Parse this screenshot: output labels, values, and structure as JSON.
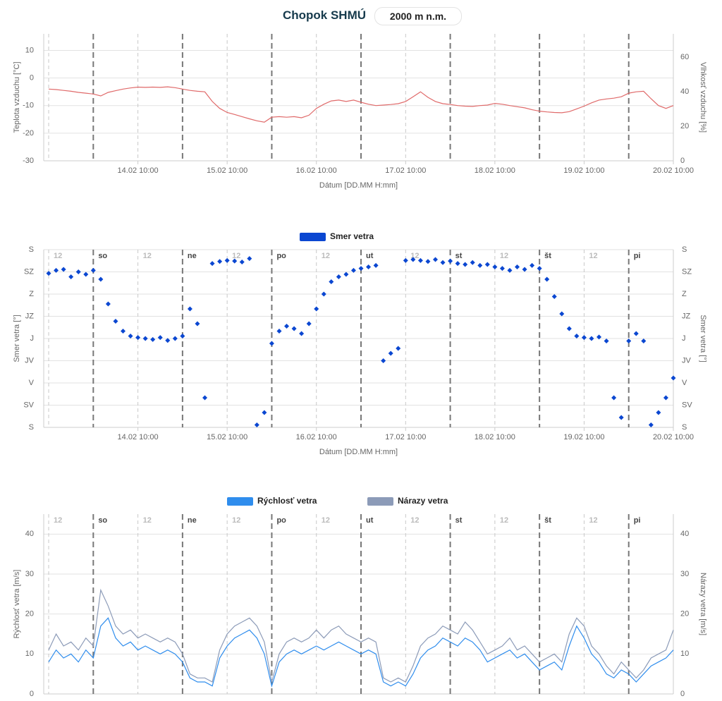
{
  "header": {
    "title": "Chopok SHMÚ",
    "elevation": "2000 m n.m."
  },
  "chart_data": [
    {
      "type": "line",
      "y_label": "Teplota vzduchu [°C]",
      "y2_label": "Vlhkosť vzduchu [%]",
      "x_label": "Dátum [DD.MM H:mm]",
      "xlim": [
        "13.02 08:40",
        "20.02 10:00"
      ],
      "xticks": [
        "14.02 10:00",
        "15.02 10:00",
        "16.02 10:00",
        "17.02 10:00",
        "18.02 10:00",
        "19.02 10:00",
        "20.02 10:00"
      ],
      "ylim": [
        -30,
        16
      ],
      "yticks": [
        -30,
        -20,
        -10,
        0,
        10
      ],
      "y2lim": [
        0,
        73.5
      ],
      "y2ticks": [
        0,
        20,
        40,
        60
      ],
      "grid": true,
      "day_lines": [
        "13.02 22:00",
        "14.02 22:00",
        "15.02 22:00",
        "16.02 22:00",
        "17.02 22:00",
        "18.02 22:00",
        "19.02 22:00"
      ],
      "noon_lines": [
        "13.02 10:00",
        "14.02 10:00",
        "15.02 10:00",
        "16.02 10:00",
        "17.02 10:00",
        "18.02 10:00",
        "19.02 10:00"
      ],
      "x": [
        "13.02 10:00",
        "13.02 12:00",
        "13.02 14:00",
        "13.02 16:00",
        "13.02 18:00",
        "13.02 20:00",
        "13.02 22:00",
        "14.02 00:00",
        "14.02 02:00",
        "14.02 04:00",
        "14.02 06:00",
        "14.02 08:00",
        "14.02 10:00",
        "14.02 12:00",
        "14.02 14:00",
        "14.02 16:00",
        "14.02 18:00",
        "14.02 20:00",
        "14.02 22:00",
        "15.02 00:00",
        "15.02 02:00",
        "15.02 04:00",
        "15.02 06:00",
        "15.02 08:00",
        "15.02 10:00",
        "15.02 12:00",
        "15.02 14:00",
        "15.02 16:00",
        "15.02 18:00",
        "15.02 20:00",
        "15.02 22:00",
        "16.02 00:00",
        "16.02 02:00",
        "16.02 04:00",
        "16.02 06:00",
        "16.02 08:00",
        "16.02 10:00",
        "16.02 12:00",
        "16.02 14:00",
        "16.02 16:00",
        "16.02 18:00",
        "16.02 20:00",
        "16.02 22:00",
        "17.02 00:00",
        "17.02 02:00",
        "17.02 04:00",
        "17.02 06:00",
        "17.02 08:00",
        "17.02 10:00",
        "17.02 12:00",
        "17.02 14:00",
        "17.02 16:00",
        "17.02 18:00",
        "17.02 20:00",
        "17.02 22:00",
        "18.02 00:00",
        "18.02 02:00",
        "18.02 04:00",
        "18.02 06:00",
        "18.02 08:00",
        "18.02 10:00",
        "18.02 12:00",
        "18.02 14:00",
        "18.02 16:00",
        "18.02 18:00",
        "18.02 20:00",
        "18.02 22:00",
        "19.02 00:00",
        "19.02 02:00",
        "19.02 04:00",
        "19.02 06:00",
        "19.02 08:00",
        "19.02 10:00",
        "19.02 12:00",
        "19.02 14:00",
        "19.02 16:00",
        "19.02 18:00",
        "19.02 20:00",
        "19.02 22:00",
        "20.02 00:00",
        "20.02 02:00",
        "20.02 04:00",
        "20.02 06:00",
        "20.02 08:00",
        "20.02 10:00"
      ],
      "series": [
        {
          "color": "#e06a6a",
          "values": [
            -4,
            -4.2,
            -4.5,
            -4.8,
            -5.2,
            -5.5,
            -5.8,
            -6.5,
            -5.2,
            -4.6,
            -4,
            -3.6,
            -3.3,
            -3.4,
            -3.3,
            -3.4,
            -3.2,
            -3.5,
            -4,
            -4.5,
            -4.8,
            -5,
            -8.5,
            -11,
            -12.5,
            -13.2,
            -14,
            -14.8,
            -15.5,
            -16,
            -14.2,
            -14,
            -14.2,
            -14,
            -14.4,
            -13.5,
            -11,
            -9.5,
            -8.3,
            -8,
            -8.5,
            -8,
            -8.8,
            -9.5,
            -10,
            -9.8,
            -9.6,
            -9.3,
            -8.5,
            -6.8,
            -5,
            -7,
            -8.5,
            -9.3,
            -9.6,
            -10,
            -10.2,
            -10.3,
            -10,
            -9.8,
            -9.2,
            -9.5,
            -10,
            -10.4,
            -10.8,
            -11.5,
            -12,
            -12.3,
            -12.5,
            -12.6,
            -12.2,
            -11.2,
            -10.2,
            -9,
            -8,
            -7.6,
            -7.3,
            -6.8,
            -5.5,
            -5,
            -4.8,
            -7.5,
            -10,
            -11,
            -10
          ]
        }
      ]
    },
    {
      "type": "scatter",
      "y_label": "Smer vetra [°]",
      "y2_label": "Smer vetra [°]",
      "x_label": "Dátum [DD.MM H:mm]",
      "xlim": [
        "13.02 08:40",
        "20.02 10:00"
      ],
      "xticks": [
        "14.02 10:00",
        "15.02 10:00",
        "16.02 10:00",
        "17.02 10:00",
        "18.02 10:00",
        "19.02 10:00",
        "20.02 10:00"
      ],
      "ylim": [
        0,
        360
      ],
      "yticks": [
        {
          "value": 0,
          "label": "S"
        },
        {
          "value": 45,
          "label": "SV"
        },
        {
          "value": 90,
          "label": "V"
        },
        {
          "value": 135,
          "label": "JV"
        },
        {
          "value": 180,
          "label": "J"
        },
        {
          "value": 225,
          "label": "JZ"
        },
        {
          "value": 270,
          "label": "Z"
        },
        {
          "value": 315,
          "label": "SZ"
        },
        {
          "value": 360,
          "label": "S"
        }
      ],
      "grid": true,
      "day_lines": [
        "13.02 22:00",
        "14.02 22:00",
        "15.02 22:00",
        "16.02 22:00",
        "17.02 22:00",
        "18.02 22:00",
        "19.02 22:00"
      ],
      "day_labels": [
        "so",
        "ne",
        "po",
        "ut",
        "st",
        "št",
        "pi"
      ],
      "noon_lines": [
        "13.02 10:00",
        "14.02 10:00",
        "15.02 10:00",
        "16.02 10:00",
        "17.02 10:00",
        "18.02 10:00",
        "19.02 10:00"
      ],
      "noon_labels": [
        "12",
        "12",
        "12",
        "12",
        "12",
        "12",
        "12"
      ],
      "x": [
        "13.02 10:00",
        "13.02 12:00",
        "13.02 14:00",
        "13.02 16:00",
        "13.02 18:00",
        "13.02 20:00",
        "13.02 22:00",
        "14.02 00:00",
        "14.02 02:00",
        "14.02 04:00",
        "14.02 06:00",
        "14.02 08:00",
        "14.02 10:00",
        "14.02 12:00",
        "14.02 14:00",
        "14.02 16:00",
        "14.02 18:00",
        "14.02 20:00",
        "14.02 22:00",
        "15.02 00:00",
        "15.02 02:00",
        "15.02 04:00",
        "15.02 06:00",
        "15.02 08:00",
        "15.02 10:00",
        "15.02 12:00",
        "15.02 14:00",
        "15.02 16:00",
        "15.02 18:00",
        "15.02 20:00",
        "15.02 22:00",
        "16.02 00:00",
        "16.02 02:00",
        "16.02 04:00",
        "16.02 06:00",
        "16.02 08:00",
        "16.02 10:00",
        "16.02 12:00",
        "16.02 14:00",
        "16.02 16:00",
        "16.02 18:00",
        "16.02 20:00",
        "16.02 22:00",
        "17.02 00:00",
        "17.02 02:00",
        "17.02 04:00",
        "17.02 06:00",
        "17.02 08:00",
        "17.02 10:00",
        "17.02 12:00",
        "17.02 14:00",
        "17.02 16:00",
        "17.02 18:00",
        "17.02 20:00",
        "17.02 22:00",
        "18.02 00:00",
        "18.02 02:00",
        "18.02 04:00",
        "18.02 06:00",
        "18.02 08:00",
        "18.02 10:00",
        "18.02 12:00",
        "18.02 14:00",
        "18.02 16:00",
        "18.02 18:00",
        "18.02 20:00",
        "18.02 22:00",
        "19.02 00:00",
        "19.02 02:00",
        "19.02 04:00",
        "19.02 06:00",
        "19.02 08:00",
        "19.02 10:00",
        "19.02 12:00",
        "19.02 14:00",
        "19.02 16:00",
        "19.02 18:00",
        "19.02 20:00",
        "19.02 22:00",
        "20.02 00:00",
        "20.02 02:00",
        "20.02 04:00",
        "20.02 06:00",
        "20.02 08:00",
        "20.02 10:00"
      ],
      "series": [
        {
          "name": "Smer vetra",
          "color": "#0b47d1",
          "values": [
            312,
            318,
            320,
            305,
            315,
            310,
            318,
            300,
            250,
            215,
            195,
            185,
            182,
            180,
            178,
            182,
            176,
            180,
            185,
            240,
            210,
            60,
            332,
            336,
            338,
            337,
            335,
            342,
            5,
            30,
            170,
            195,
            205,
            200,
            190,
            210,
            240,
            270,
            295,
            305,
            310,
            318,
            322,
            325,
            328,
            135,
            150,
            160,
            338,
            340,
            338,
            336,
            340,
            334,
            337,
            332,
            330,
            334,
            328,
            330,
            325,
            322,
            318,
            325,
            320,
            328,
            322,
            300,
            265,
            230,
            200,
            185,
            182,
            180,
            183,
            175,
            60,
            20,
            175,
            190,
            175,
            5,
            30,
            60,
            100
          ]
        }
      ]
    },
    {
      "type": "line",
      "y_label": "Rýchlosť vetra [m/s]",
      "y2_label": "Nárazy vetra [m/s]",
      "xlim": [
        "13.02 08:40",
        "20.02 10:00"
      ],
      "ylim": [
        0,
        45
      ],
      "yticks": [
        0,
        10,
        20,
        30,
        40
      ],
      "y2lim": [
        0,
        45
      ],
      "y2ticks": [
        0,
        10,
        20,
        30,
        40
      ],
      "grid": true,
      "day_lines": [
        "13.02 22:00",
        "14.02 22:00",
        "15.02 22:00",
        "16.02 22:00",
        "17.02 22:00",
        "18.02 22:00",
        "19.02 22:00"
      ],
      "day_labels": [
        "so",
        "ne",
        "po",
        "ut",
        "st",
        "št",
        "pi"
      ],
      "noon_lines": [
        "13.02 10:00",
        "14.02 10:00",
        "15.02 10:00",
        "16.02 10:00",
        "17.02 10:00",
        "18.02 10:00",
        "19.02 10:00"
      ],
      "noon_labels": [
        "12",
        "12",
        "12",
        "12",
        "12",
        "12",
        "12"
      ],
      "x": [
        "13.02 10:00",
        "13.02 12:00",
        "13.02 14:00",
        "13.02 16:00",
        "13.02 18:00",
        "13.02 20:00",
        "13.02 22:00",
        "14.02 00:00",
        "14.02 02:00",
        "14.02 04:00",
        "14.02 06:00",
        "14.02 08:00",
        "14.02 10:00",
        "14.02 12:00",
        "14.02 14:00",
        "14.02 16:00",
        "14.02 18:00",
        "14.02 20:00",
        "14.02 22:00",
        "15.02 00:00",
        "15.02 02:00",
        "15.02 04:00",
        "15.02 06:00",
        "15.02 08:00",
        "15.02 10:00",
        "15.02 12:00",
        "15.02 14:00",
        "15.02 16:00",
        "15.02 18:00",
        "15.02 20:00",
        "15.02 22:00",
        "16.02 00:00",
        "16.02 02:00",
        "16.02 04:00",
        "16.02 06:00",
        "16.02 08:00",
        "16.02 10:00",
        "16.02 12:00",
        "16.02 14:00",
        "16.02 16:00",
        "16.02 18:00",
        "16.02 20:00",
        "16.02 22:00",
        "17.02 00:00",
        "17.02 02:00",
        "17.02 04:00",
        "17.02 06:00",
        "17.02 08:00",
        "17.02 10:00",
        "17.02 12:00",
        "17.02 14:00",
        "17.02 16:00",
        "17.02 18:00",
        "17.02 20:00",
        "17.02 22:00",
        "18.02 00:00",
        "18.02 02:00",
        "18.02 04:00",
        "18.02 06:00",
        "18.02 08:00",
        "18.02 10:00",
        "18.02 12:00",
        "18.02 14:00",
        "18.02 16:00",
        "18.02 18:00",
        "18.02 20:00",
        "18.02 22:00",
        "19.02 00:00",
        "19.02 02:00",
        "19.02 04:00",
        "19.02 06:00",
        "19.02 08:00",
        "19.02 10:00",
        "19.02 12:00",
        "19.02 14:00",
        "19.02 16:00",
        "19.02 18:00",
        "19.02 20:00",
        "19.02 22:00",
        "20.02 00:00",
        "20.02 02:00",
        "20.02 04:00",
        "20.02 06:00",
        "20.02 08:00",
        "20.02 10:00"
      ],
      "series": [
        {
          "name": "Rýchlosť vetra",
          "color": "#2f8ded",
          "values": [
            8,
            11,
            9,
            10,
            8,
            11,
            9,
            17,
            19,
            14,
            12,
            13,
            11,
            12,
            11,
            10,
            11,
            10,
            8,
            4,
            3,
            3,
            2,
            9,
            12,
            14,
            15,
            16,
            14,
            10,
            2,
            8,
            10,
            11,
            10,
            11,
            12,
            11,
            12,
            13,
            12,
            11,
            10,
            11,
            10,
            3,
            2,
            3,
            2,
            5,
            9,
            11,
            12,
            14,
            13,
            12,
            14,
            13,
            11,
            8,
            9,
            10,
            11,
            9,
            10,
            8,
            6,
            7,
            8,
            6,
            12,
            17,
            14,
            10,
            8,
            5,
            4,
            6,
            5,
            3,
            5,
            7,
            8,
            9,
            11
          ]
        },
        {
          "name": "Nárazy vetra",
          "color": "#8c9bb8",
          "axis": "y2",
          "values": [
            11,
            15,
            12,
            13,
            11,
            14,
            12,
            26,
            22,
            17,
            15,
            16,
            14,
            15,
            14,
            13,
            14,
            13,
            10,
            5,
            4,
            4,
            3,
            11,
            15,
            17,
            18,
            19,
            17,
            13,
            3,
            10,
            13,
            14,
            13,
            14,
            16,
            14,
            16,
            17,
            15,
            14,
            13,
            14,
            13,
            4,
            3,
            4,
            3,
            7,
            12,
            14,
            15,
            17,
            16,
            15,
            18,
            16,
            13,
            10,
            11,
            12,
            14,
            11,
            12,
            10,
            8,
            9,
            10,
            8,
            15,
            19,
            17,
            12,
            10,
            7,
            5,
            8,
            6,
            4,
            6,
            9,
            10,
            11,
            16
          ]
        }
      ]
    }
  ]
}
